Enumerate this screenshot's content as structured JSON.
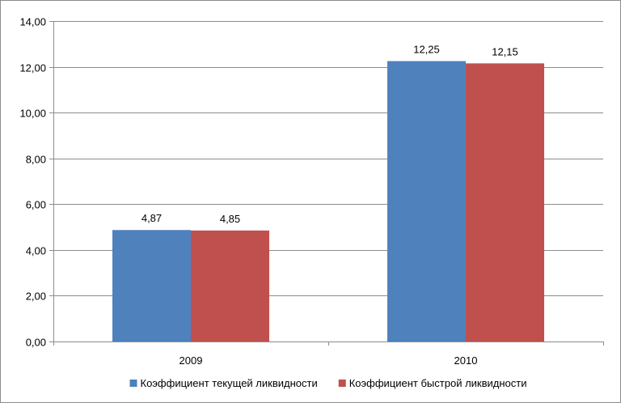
{
  "chart_data": {
    "type": "bar",
    "categories": [
      "2009",
      "2010"
    ],
    "series": [
      {
        "name": "Коэффициент текущей ликвидности",
        "values": [
          4.87,
          12.25
        ],
        "labels": [
          "4,87",
          "12,25"
        ],
        "color": "#4F81BD"
      },
      {
        "name": "Коэффициент быстрой ликвидности",
        "values": [
          4.85,
          12.15
        ],
        "labels": [
          "4,85",
          "12,15"
        ],
        "color": "#C0504D"
      }
    ],
    "ylim": [
      0,
      14
    ],
    "yticks": [
      0,
      2,
      4,
      6,
      8,
      10,
      12,
      14
    ],
    "ytick_labels": [
      "0,00",
      "2,00",
      "4,00",
      "6,00",
      "8,00",
      "10,00",
      "12,00",
      "14,00"
    ],
    "grid": true,
    "legend_position": "bottom"
  }
}
